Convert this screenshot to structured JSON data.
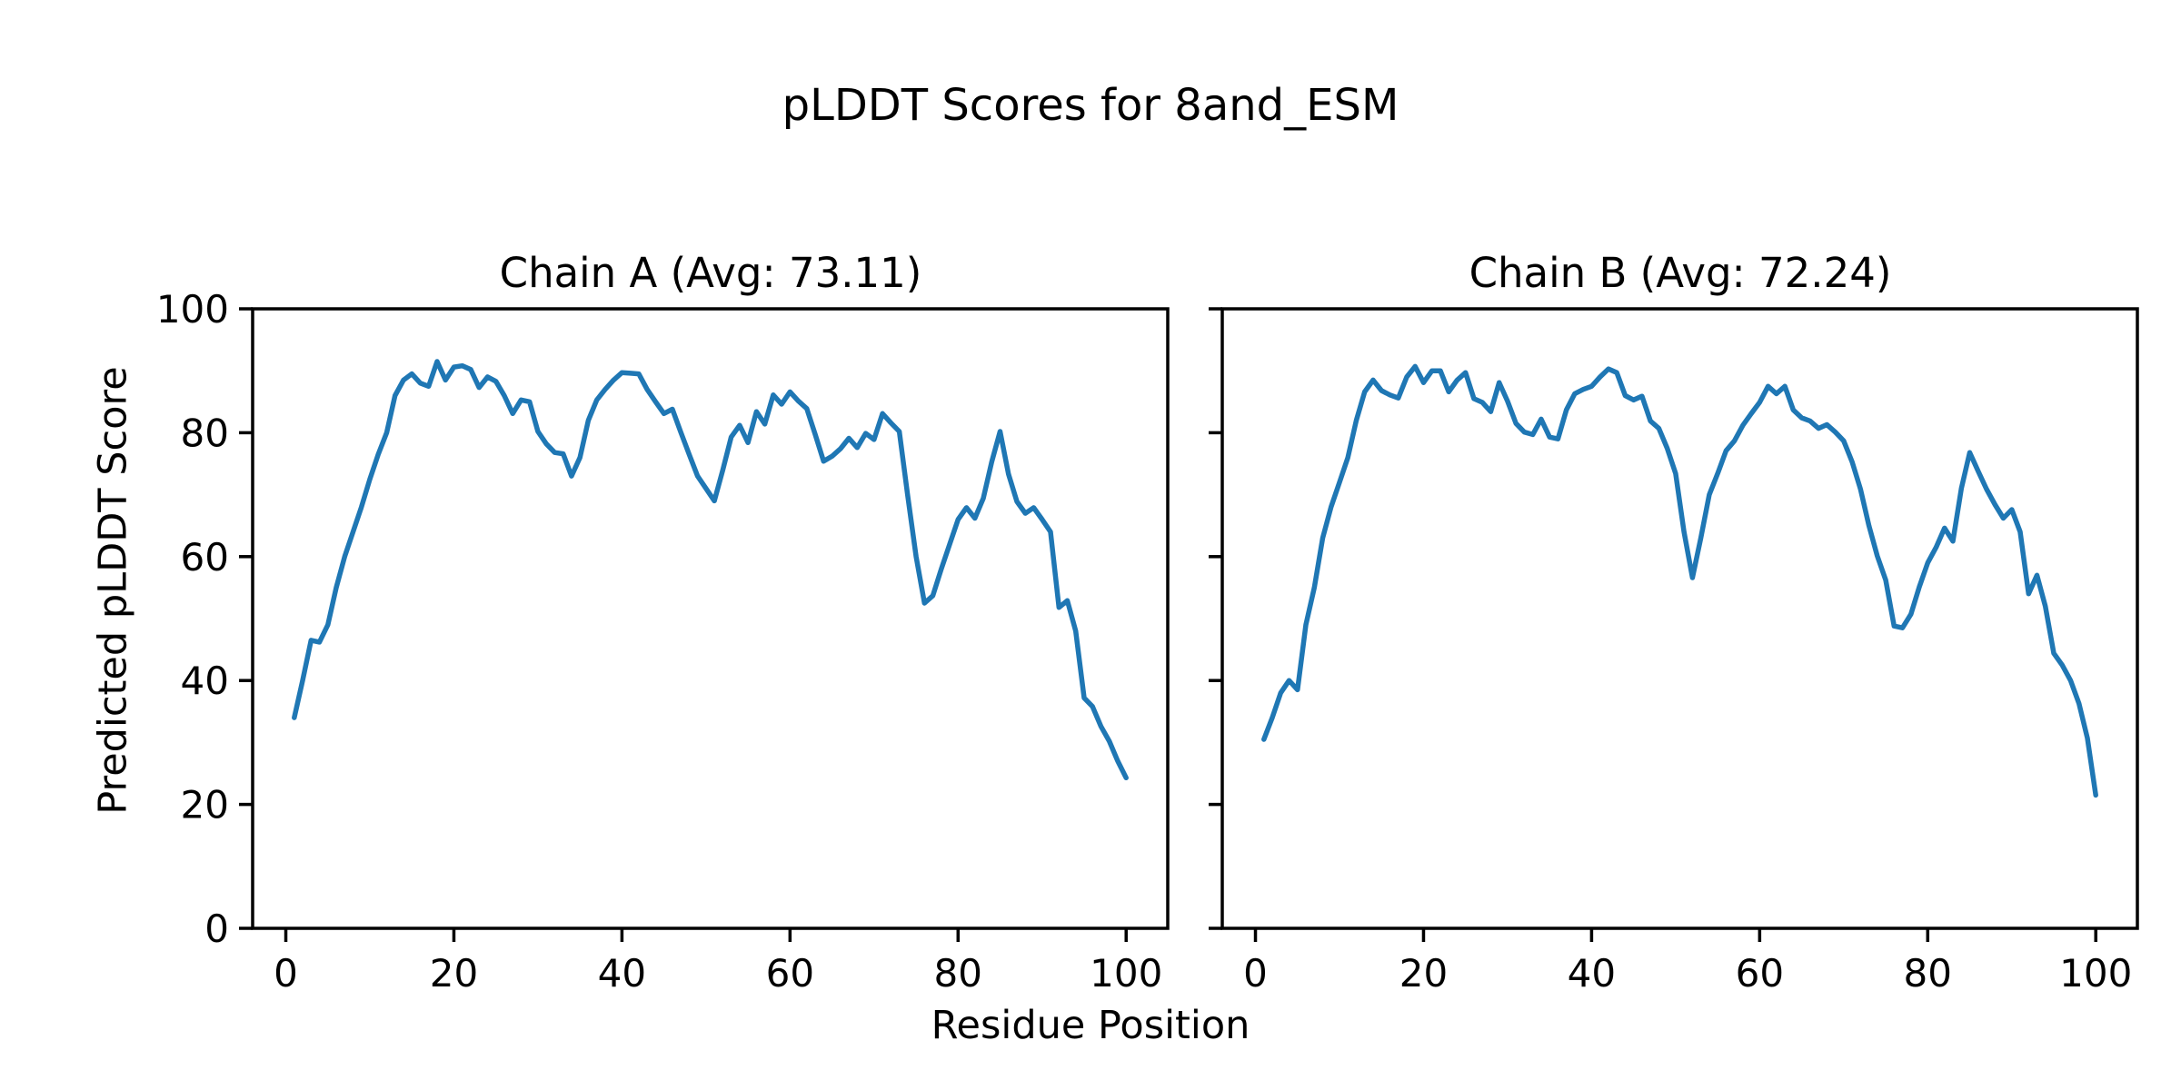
{
  "figure": {
    "suptitle": "pLDDT Scores for 8and_ESM",
    "xlabel": "Residue Position",
    "ylabel": "Predicted pLDDT Score",
    "line_color": "#1f77b4",
    "axis_color": "#000000",
    "background_color": "#ffffff"
  },
  "chart_data": [
    {
      "type": "line",
      "title": "Chain A (Avg: 73.11)",
      "chain": "A",
      "avg_plddt": 73.11,
      "x_start": 1,
      "x_step": 1,
      "n_points": 100,
      "xlim": [
        -3.95,
        104.95
      ],
      "ylim": [
        0,
        100
      ],
      "xticks": [
        0,
        20,
        40,
        60,
        80,
        100
      ],
      "yticks": [
        0,
        20,
        40,
        60,
        80,
        100
      ],
      "show_y_tick_labels": true,
      "grid": false,
      "legend": "none",
      "y": [
        34,
        40,
        46.5,
        46.2,
        49,
        55,
        60,
        64,
        68,
        72.5,
        76.5,
        80,
        86,
        88.5,
        89.5,
        88,
        87.5,
        91.5,
        88.5,
        90.6,
        90.8,
        90.2,
        87.3,
        89,
        88.3,
        86,
        83.1,
        85.3,
        85,
        80.2,
        78.2,
        76.8,
        76.6,
        73,
        76,
        82,
        85.3,
        87,
        88.5,
        89.7,
        89.6,
        89.5,
        87,
        85,
        83.1,
        83.8,
        80.1,
        76.5,
        73,
        71,
        69,
        74,
        79.3,
        81.2,
        78.4,
        83.4,
        81.4,
        86.1,
        84.6,
        86.6,
        85.1,
        83.9,
        79.7,
        75.4,
        76.2,
        77.4,
        79.1,
        77.6,
        79.9,
        78.9,
        83.1,
        81.6,
        80.2,
        69.9,
        60,
        52.5,
        53.7,
        58,
        62,
        66,
        67.9,
        66.2,
        69.4,
        75.3,
        80.2,
        73.3,
        68.9,
        67,
        67.9,
        66,
        64,
        51.8,
        52.9,
        48,
        37.2,
        35.8,
        32.6,
        30.2,
        27,
        24.3
      ]
    },
    {
      "type": "line",
      "title": "Chain B (Avg: 72.24)",
      "chain": "B",
      "avg_plddt": 72.24,
      "x_start": 1,
      "x_step": 1,
      "n_points": 100,
      "xlim": [
        -3.95,
        104.95
      ],
      "ylim": [
        0,
        100
      ],
      "xticks": [
        0,
        20,
        40,
        60,
        80,
        100
      ],
      "yticks": [
        0,
        20,
        40,
        60,
        80,
        100
      ],
      "show_y_tick_labels": false,
      "grid": false,
      "legend": "none",
      "y": [
        30.5,
        34,
        38,
        40,
        38.5,
        49,
        55,
        63,
        68,
        72,
        76,
        82,
        86.6,
        88.5,
        86.8,
        86.1,
        85.6,
        89,
        90.7,
        88.1,
        90,
        90,
        86.6,
        88.5,
        89.7,
        85.5,
        84.9,
        83.4,
        88.1,
        85.1,
        81.5,
        80.1,
        79.7,
        82.2,
        79.3,
        79,
        83.7,
        86.3,
        87,
        87.5,
        89,
        90.3,
        89.7,
        86,
        85.3,
        85.9,
        81.9,
        80.7,
        77.5,
        73.4,
        64,
        56.6,
        63,
        70,
        73.4,
        77.1,
        78.7,
        81.2,
        83.1,
        84.9,
        87.5,
        86.3,
        87.5,
        83.7,
        82.4,
        81.9,
        80.7,
        81.3,
        80.1,
        78.7,
        75.3,
        70.9,
        65,
        60.1,
        56.2,
        48.8,
        48.5,
        50.7,
        55.1,
        59,
        61.5,
        64.6,
        62.5,
        71,
        76.8,
        73.8,
        70.9,
        68.4,
        66.2,
        67.6,
        64,
        54,
        57,
        52,
        44.4,
        42.5,
        40,
        36.3,
        30.7,
        21.5
      ]
    }
  ]
}
